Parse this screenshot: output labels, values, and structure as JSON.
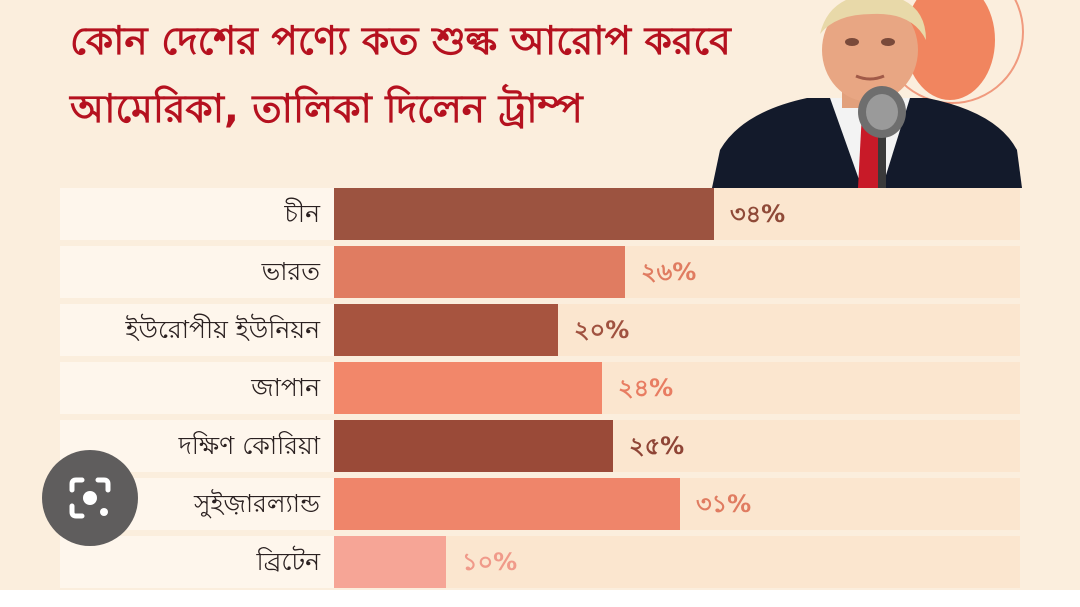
{
  "title_line1": "কোন দেশের পণ্যে কত শুল্ক আরোপ করবে",
  "title_line2": "আমেরিকা, তালিকা দিলেন ট্রাম্প",
  "lens_icon": "google-lens-icon",
  "chart_data": {
    "type": "bar",
    "orientation": "horizontal",
    "title": "কোন দেশের পণ্যে কত শুল্ক আরোপ করবে আমেরিকা, তালিকা দিলেন ট্রাম্প",
    "categories": [
      "চীন",
      "ভারত",
      "ইউরোপীয় ইউনিয়ন",
      "জাপান",
      "দক্ষিণ কোরিয়া",
      "সুইজ়ারল্যান্ড",
      "ব্রিটেন"
    ],
    "values": [
      34,
      26,
      20,
      24,
      25,
      31,
      10
    ],
    "value_labels": [
      "৩৪%",
      "২৬%",
      "২০%",
      "২৪%",
      "২৫%",
      "৩১%",
      "১০%"
    ],
    "bar_colors": [
      "#9c5340",
      "#e07c61",
      "#a7543f",
      "#f2876a",
      "#9a4a38",
      "#ef856a",
      "#f6a596"
    ],
    "label_colors": [
      "#8f4a38",
      "#e07c61",
      "#a05240",
      "#e87d62",
      "#8f4536",
      "#e07c61",
      "#f09a8a"
    ],
    "xlim": [
      0,
      34
    ],
    "grid": false,
    "legend": "none"
  }
}
